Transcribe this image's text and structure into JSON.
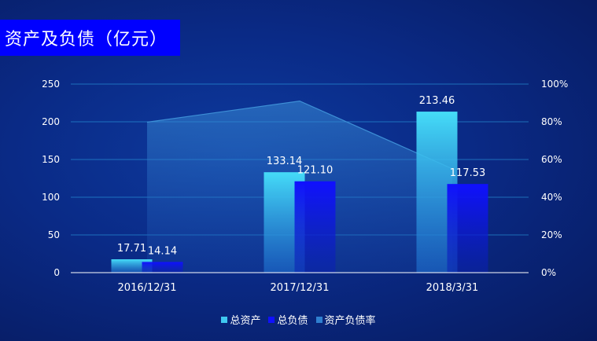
{
  "title": "资产及负债（亿元）",
  "chart_data": {
    "type": "bar",
    "categories": [
      "2016/12/31",
      "2017/12/31",
      "2018/3/31"
    ],
    "series": [
      {
        "name": "总资产",
        "type": "bar",
        "values": [
          17.71,
          133.14,
          213.46
        ],
        "labels": [
          "17.71",
          "133.14",
          "213.46"
        ],
        "color": "#3fd4f5"
      },
      {
        "name": "总负债",
        "type": "bar",
        "values": [
          14.14,
          121.1,
          117.53
        ],
        "labels": [
          "14.14",
          "121.10",
          "117.53"
        ],
        "color": "#1414ff"
      },
      {
        "name": "资产负债率",
        "type": "area",
        "axis": "right",
        "values": [
          79.8,
          91.0,
          55.1
        ],
        "color": "#2f7fd0"
      }
    ],
    "y_left": {
      "min": 0,
      "max": 250,
      "ticks": [
        "0",
        "50",
        "100",
        "150",
        "200",
        "250"
      ]
    },
    "y_right": {
      "min": 0,
      "max": 100,
      "ticks": [
        "0%",
        "20%",
        "40%",
        "60%",
        "80%",
        "100%"
      ]
    },
    "grid": true,
    "legend_position": "bottom"
  }
}
